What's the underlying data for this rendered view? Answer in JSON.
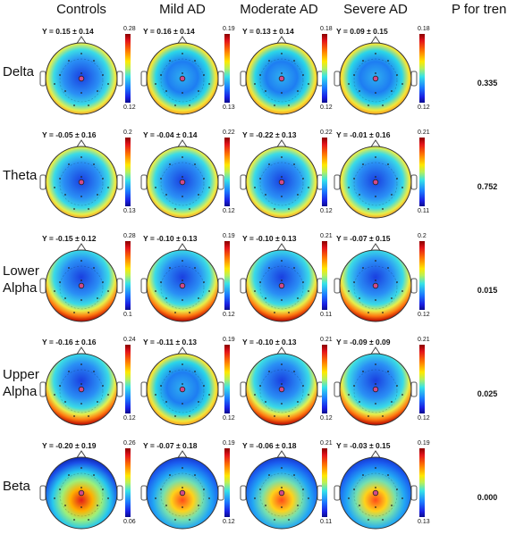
{
  "columns": [
    {
      "label": "Controls"
    },
    {
      "label": "Mild AD"
    },
    {
      "label": "Moderate AD"
    },
    {
      "label": "Severe AD"
    }
  ],
  "ptrend_header": "P for trend",
  "rows": [
    {
      "band": [
        "Delta"
      ],
      "p": "0.335",
      "cells": [
        {
          "y": "Y = 0.15 ± 0.14",
          "max": "0.28",
          "min": "0.12",
          "core": "blue-center"
        },
        {
          "y": "Y = 0.16 ± 0.14",
          "max": "0.19",
          "min": "0.13",
          "core": "mixed"
        },
        {
          "y": "Y = 0.13 ± 0.14",
          "max": "0.18",
          "min": "0.12",
          "core": "mixed"
        },
        {
          "y": "Y = 0.09 ± 0.15",
          "max": "0.18",
          "min": "0.12",
          "core": "mixed"
        }
      ]
    },
    {
      "band": [
        "Theta"
      ],
      "p": "0.752",
      "cells": [
        {
          "y": "Y = -0.05 ± 0.16",
          "max": "0.2",
          "min": "0.13",
          "core": "blue-center"
        },
        {
          "y": "Y = -0.04 ± 0.14",
          "max": "0.22",
          "min": "0.12",
          "core": "blue-center"
        },
        {
          "y": "Y = -0.22 ± 0.13",
          "max": "0.22",
          "min": "0.12",
          "core": "blue-center"
        },
        {
          "y": "Y = -0.01 ± 0.16",
          "max": "0.21",
          "min": "0.11",
          "core": "blue-center"
        }
      ]
    },
    {
      "band": [
        "Lower",
        "Alpha"
      ],
      "p": "0.015",
      "cells": [
        {
          "y": "Y = -0.15 ± 0.12",
          "max": "0.28",
          "min": "0.1",
          "core": "blue-top"
        },
        {
          "y": "Y = -0.10 ± 0.13",
          "max": "0.19",
          "min": "0.12",
          "core": "blue-top"
        },
        {
          "y": "Y = -0.10 ± 0.13",
          "max": "0.21",
          "min": "0.11",
          "core": "blue-top"
        },
        {
          "y": "Y = -0.07 ± 0.15",
          "max": "0.2",
          "min": "0.12",
          "core": "blue-top"
        }
      ]
    },
    {
      "band": [
        "Upper",
        "Alpha"
      ],
      "p": "0.025",
      "cells": [
        {
          "y": "Y = -0.16 ± 0.16",
          "max": "0.24",
          "min": "0.12",
          "core": "blue-top"
        },
        {
          "y": "Y = -0.11 ± 0.13",
          "max": "0.19",
          "min": "0.12",
          "core": "mixed"
        },
        {
          "y": "Y = -0.10 ± 0.13",
          "max": "0.21",
          "min": "0.12",
          "core": "blue-top"
        },
        {
          "y": "Y = -0.09 ± 0.09",
          "max": "0.21",
          "min": "0.12",
          "core": "blue-top"
        }
      ]
    },
    {
      "band": [
        "Beta"
      ],
      "p": "0.000",
      "cells": [
        {
          "y": "Y = -0.20 ± 0.19",
          "max": "0.26",
          "min": "0.06",
          "core": "red-bottom"
        },
        {
          "y": "Y = -0.07 ± 0.18",
          "max": "0.19",
          "min": "0.12",
          "core": "red-mid"
        },
        {
          "y": "Y = -0.06 ± 0.18",
          "max": "0.21",
          "min": "0.11",
          "core": "red-mid"
        },
        {
          "y": "Y = -0.03 ± 0.15",
          "max": "0.19",
          "min": "0.13",
          "core": "red-mid"
        }
      ]
    }
  ]
}
